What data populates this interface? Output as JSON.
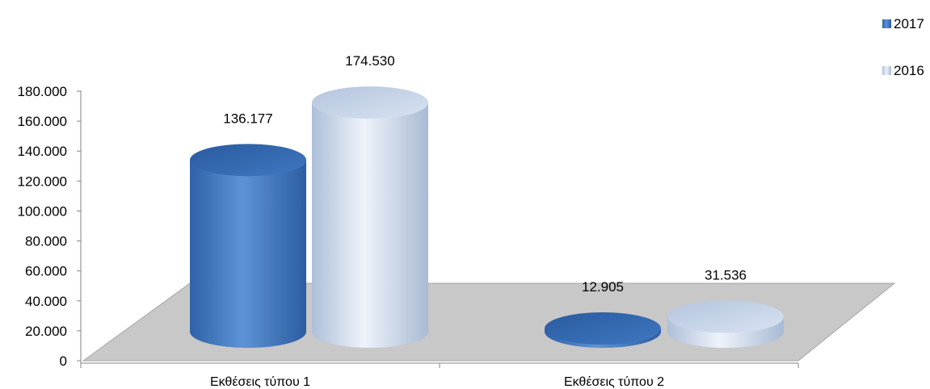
{
  "chart_data": {
    "type": "bar",
    "style": "3d-cylinder",
    "categories": [
      "Εκθέσεις τύπου 1",
      "Εκθέσεις τύπου 2"
    ],
    "series": [
      {
        "name": "2017",
        "values": [
          136177,
          12905
        ],
        "labels": [
          "136.177",
          "12.905"
        ],
        "color": "#3d75be"
      },
      {
        "name": "2016",
        "values": [
          174530,
          31536
        ],
        "labels": [
          "174.530",
          "31.536"
        ],
        "color": "#c6d5ea"
      }
    ],
    "yticks": [
      "0",
      "20.000",
      "40.000",
      "60.000",
      "80.000",
      "100.000",
      "120.000",
      "140.000",
      "160.000",
      "180.000"
    ],
    "ylim": [
      0,
      180000
    ],
    "legend_position": "top-right",
    "floor_color": "#c4c4c4"
  }
}
